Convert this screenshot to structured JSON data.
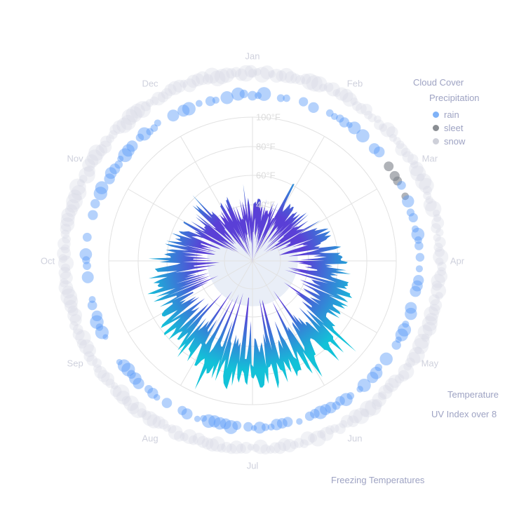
{
  "chart_data": {
    "type": "radial-area",
    "title": "",
    "center": [
      360,
      372
    ],
    "months": [
      "Jan",
      "Feb",
      "Mar",
      "Apr",
      "May",
      "Jun",
      "Jul",
      "Aug",
      "Sep",
      "Oct",
      "Nov",
      "Dec"
    ],
    "radial_ticks": [
      "40°F",
      "60°F",
      "80°F",
      "100°F"
    ],
    "radial_tick_values": [
      40,
      60,
      80,
      100
    ],
    "freezing_threshold_f": 32,
    "temperature_gradient": {
      "low": "#5a3fd6",
      "high": "#12c2d8"
    },
    "series": [
      {
        "name": "Temperature",
        "type": "radial-area",
        "description": "Daily low/high temperature band, roughly 20–100°F"
      },
      {
        "name": "Precipitation",
        "type": "bubble-ring",
        "categories": [
          "rain",
          "sleet",
          "snow"
        ]
      },
      {
        "name": "Cloud Cover",
        "type": "bubble-ring"
      },
      {
        "name": "UV Index over 8",
        "type": "marker"
      },
      {
        "name": "Freezing Temperatures",
        "type": "shaded-circle"
      }
    ],
    "legend_position": "right",
    "grid": true
  },
  "legend": {
    "cloud_cover": "Cloud Cover",
    "precipitation": "Precipitation",
    "precip_types": [
      {
        "label": "rain",
        "color": "#7fb2f7"
      },
      {
        "label": "sleet",
        "color": "#8a8e93"
      },
      {
        "label": "snow",
        "color": "#ced0d9"
      }
    ],
    "temperature": "Temperature",
    "uv": "UV Index over 8",
    "freezing": "Freezing Temperatures"
  },
  "colors": {
    "rain": "#5a9cf8",
    "cloud": "#d7dbe6",
    "grid": "#e2e2e2",
    "freezing_fill": "#e9eef7"
  }
}
